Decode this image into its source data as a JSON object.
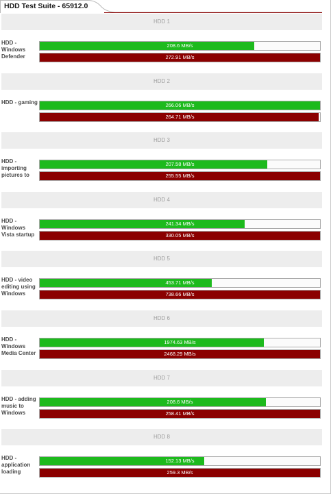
{
  "header": {
    "title": "HDD Test Suite - 65912.0"
  },
  "colors": {
    "green": "#1dba1d",
    "red": "#8b0000",
    "header_bg": "#ededed"
  },
  "chart_data": {
    "type": "bar",
    "title": "HDD Test Suite - 65912.0",
    "unit": "MB/s",
    "categories": [
      "HDD - Windows Defender",
      "HDD - gaming",
      "HDD - importing pictures to",
      "HDD - Windows Vista startup",
      "HDD - video editing using Windows",
      "HDD - Windows Media Center",
      "HDD - adding music to Windows",
      "HDD - application loading"
    ],
    "groups": [
      {
        "header": "HDD 1",
        "label": "HDD - Windows Defender",
        "green": {
          "value": 208.6,
          "label": "208.6 MB/s"
        },
        "red": {
          "value": 272.91,
          "label": "272.91 MB/s"
        }
      },
      {
        "header": "HDD 2",
        "label": "HDD - gaming",
        "green": {
          "value": 266.06,
          "label": "266.06 MB/s"
        },
        "red": {
          "value": 264.71,
          "label": "264.71 MB/s"
        }
      },
      {
        "header": "HDD 3",
        "label": "HDD - importing pictures to",
        "green": {
          "value": 207.58,
          "label": "207.58 MB/s"
        },
        "red": {
          "value": 255.55,
          "label": "255.55 MB/s"
        }
      },
      {
        "header": "HDD 4",
        "label": "HDD - Windows Vista startup",
        "green": {
          "value": 241.34,
          "label": "241.34 MB/s"
        },
        "red": {
          "value": 330.05,
          "label": "330.05 MB/s"
        }
      },
      {
        "header": "HDD 5",
        "label": "HDD - video editing using Windows",
        "green": {
          "value": 453.71,
          "label": "453.71 MB/s"
        },
        "red": {
          "value": 738.66,
          "label": "738.66 MB/s"
        }
      },
      {
        "header": "HDD 6",
        "label": "HDD - Windows Media Center",
        "green": {
          "value": 1974.63,
          "label": "1974.63 MB/s"
        },
        "red": {
          "value": 2468.29,
          "label": "2468.29 MB/s"
        }
      },
      {
        "header": "HDD 7",
        "label": "HDD - adding music to Windows",
        "green": {
          "value": 208.6,
          "label": "208.6 MB/s"
        },
        "red": {
          "value": 258.41,
          "label": "258.41 MB/s"
        }
      },
      {
        "header": "HDD 8",
        "label": "HDD - application loading",
        "green": {
          "value": 152.13,
          "label": "152.13 MB/s"
        },
        "red": {
          "value": 259.3,
          "label": "259.3 MB/s"
        }
      }
    ]
  }
}
